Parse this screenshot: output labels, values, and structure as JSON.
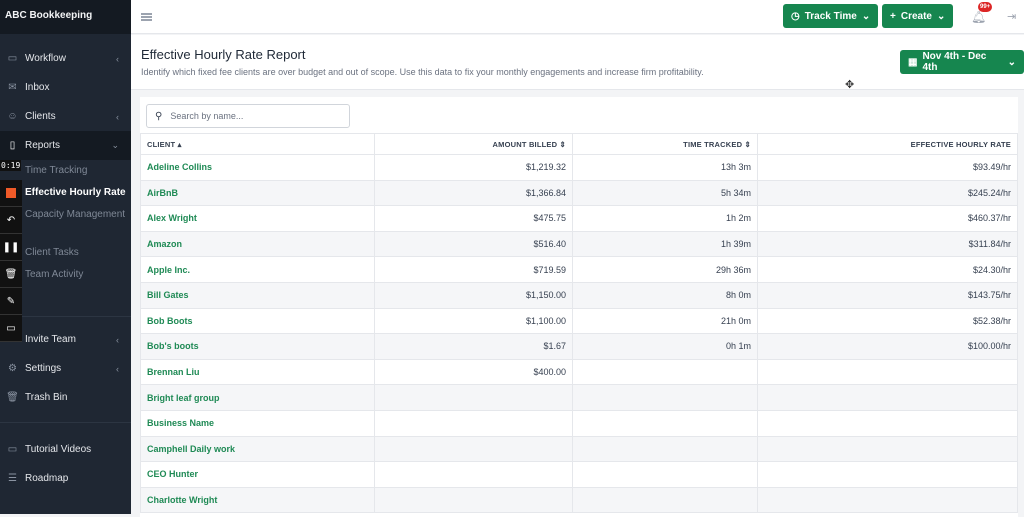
{
  "sidebar": {
    "brand": "ABC Bookkeeping",
    "items": [
      {
        "label": "Workflow",
        "icon": "briefcase-icon",
        "chev": "<"
      },
      {
        "label": "Inbox",
        "icon": "mail-icon",
        "chev": ""
      },
      {
        "label": "Clients",
        "icon": "users-icon",
        "chev": "<"
      },
      {
        "label": "Reports",
        "icon": "file-icon",
        "chev": "v"
      }
    ],
    "sub": [
      "Time Tracking",
      "Effective Hourly Rate",
      "Capacity Management",
      "Client Tasks",
      "Team Activity"
    ],
    "items2": [
      {
        "label": "Invite Team",
        "chev": "<"
      },
      {
        "label": "Settings",
        "chev": "<"
      },
      {
        "label": "Trash Bin",
        "chev": ""
      }
    ],
    "items3": [
      {
        "label": "Tutorial Videos"
      },
      {
        "label": "Roadmap"
      }
    ]
  },
  "recorder": {
    "timer": "0:19"
  },
  "topbar": {
    "track_time": "Track Time",
    "create": "Create",
    "notif_count": "99+"
  },
  "header": {
    "title": "Effective Hourly Rate Report",
    "description": "Identify which fixed fee clients are over budget and out of scope. Use this data to fix your monthly engagements and increase firm profitability.",
    "date_range": "Nov 4th - Dec 4th"
  },
  "search": {
    "placeholder": "Search by name..."
  },
  "table": {
    "columns": [
      "CLIENT ▴",
      "AMOUNT BILLED ⇕",
      "TIME TRACKED ⇕",
      "EFFECTIVE HOURLY RATE"
    ],
    "rows": [
      [
        "Adeline Collins",
        "$1,219.32",
        "13h 3m",
        "$93.49/hr"
      ],
      [
        "AirBnB",
        "$1,366.84",
        "5h 34m",
        "$245.24/hr"
      ],
      [
        "Alex Wright",
        "$475.75",
        "1h 2m",
        "$460.37/hr"
      ],
      [
        "Amazon",
        "$516.40",
        "1h 39m",
        "$311.84/hr"
      ],
      [
        "Apple Inc.",
        "$719.59",
        "29h 36m",
        "$24.30/hr"
      ],
      [
        "Bill Gates",
        "$1,150.00",
        "8h 0m",
        "$143.75/hr"
      ],
      [
        "Bob Boots",
        "$1,100.00",
        "21h 0m",
        "$52.38/hr"
      ],
      [
        "Bob's boots",
        "$1.67",
        "0h 1m",
        "$100.00/hr"
      ],
      [
        "Brennan Liu",
        "$400.00",
        "",
        ""
      ],
      [
        "Bright leaf group",
        "",
        "",
        ""
      ],
      [
        "Business Name",
        "",
        "",
        ""
      ],
      [
        "Camphell Daily work",
        "",
        "",
        ""
      ],
      [
        "CEO Hunter",
        "",
        "",
        ""
      ],
      [
        "Charlotte Wright",
        "",
        "",
        ""
      ]
    ]
  },
  "colors": {
    "accent": "#16864f",
    "link": "#1f8a55",
    "sidebar": "#1f2733"
  }
}
